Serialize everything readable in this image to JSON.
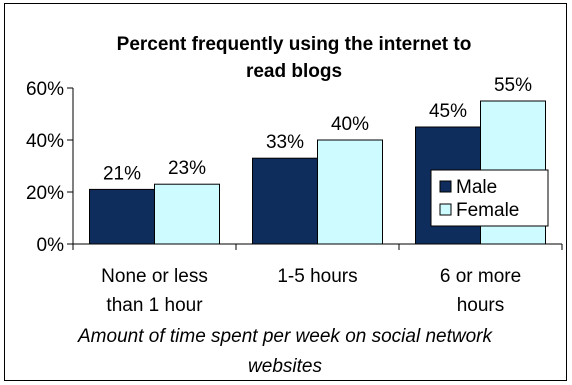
{
  "chart_data": {
    "type": "bar",
    "title_lines": [
      "Percent frequently using the internet to",
      "read blogs"
    ],
    "categories": [
      [
        "None or less",
        "than 1 hour"
      ],
      [
        "1-5 hours"
      ],
      [
        "6 or more",
        "hours"
      ]
    ],
    "series": [
      {
        "name": "Male",
        "values": [
          21,
          33,
          45
        ],
        "labels": [
          "21%",
          "33%",
          "45%"
        ],
        "color": "#0f2d5c"
      },
      {
        "name": "Female",
        "values": [
          23,
          40,
          55
        ],
        "labels": [
          "23%",
          "40%",
          "55%"
        ],
        "color": "#cdfbff"
      }
    ],
    "xlabel_lines": [
      "Amount of time spent per week on social network",
      "websites"
    ],
    "ylabel": "",
    "ylim": [
      0,
      60
    ],
    "yticks": [
      0,
      20,
      40,
      60
    ],
    "ytick_labels": [
      "0%",
      "20%",
      "40%",
      "60%"
    ],
    "grid": false,
    "legend_position": "right"
  }
}
